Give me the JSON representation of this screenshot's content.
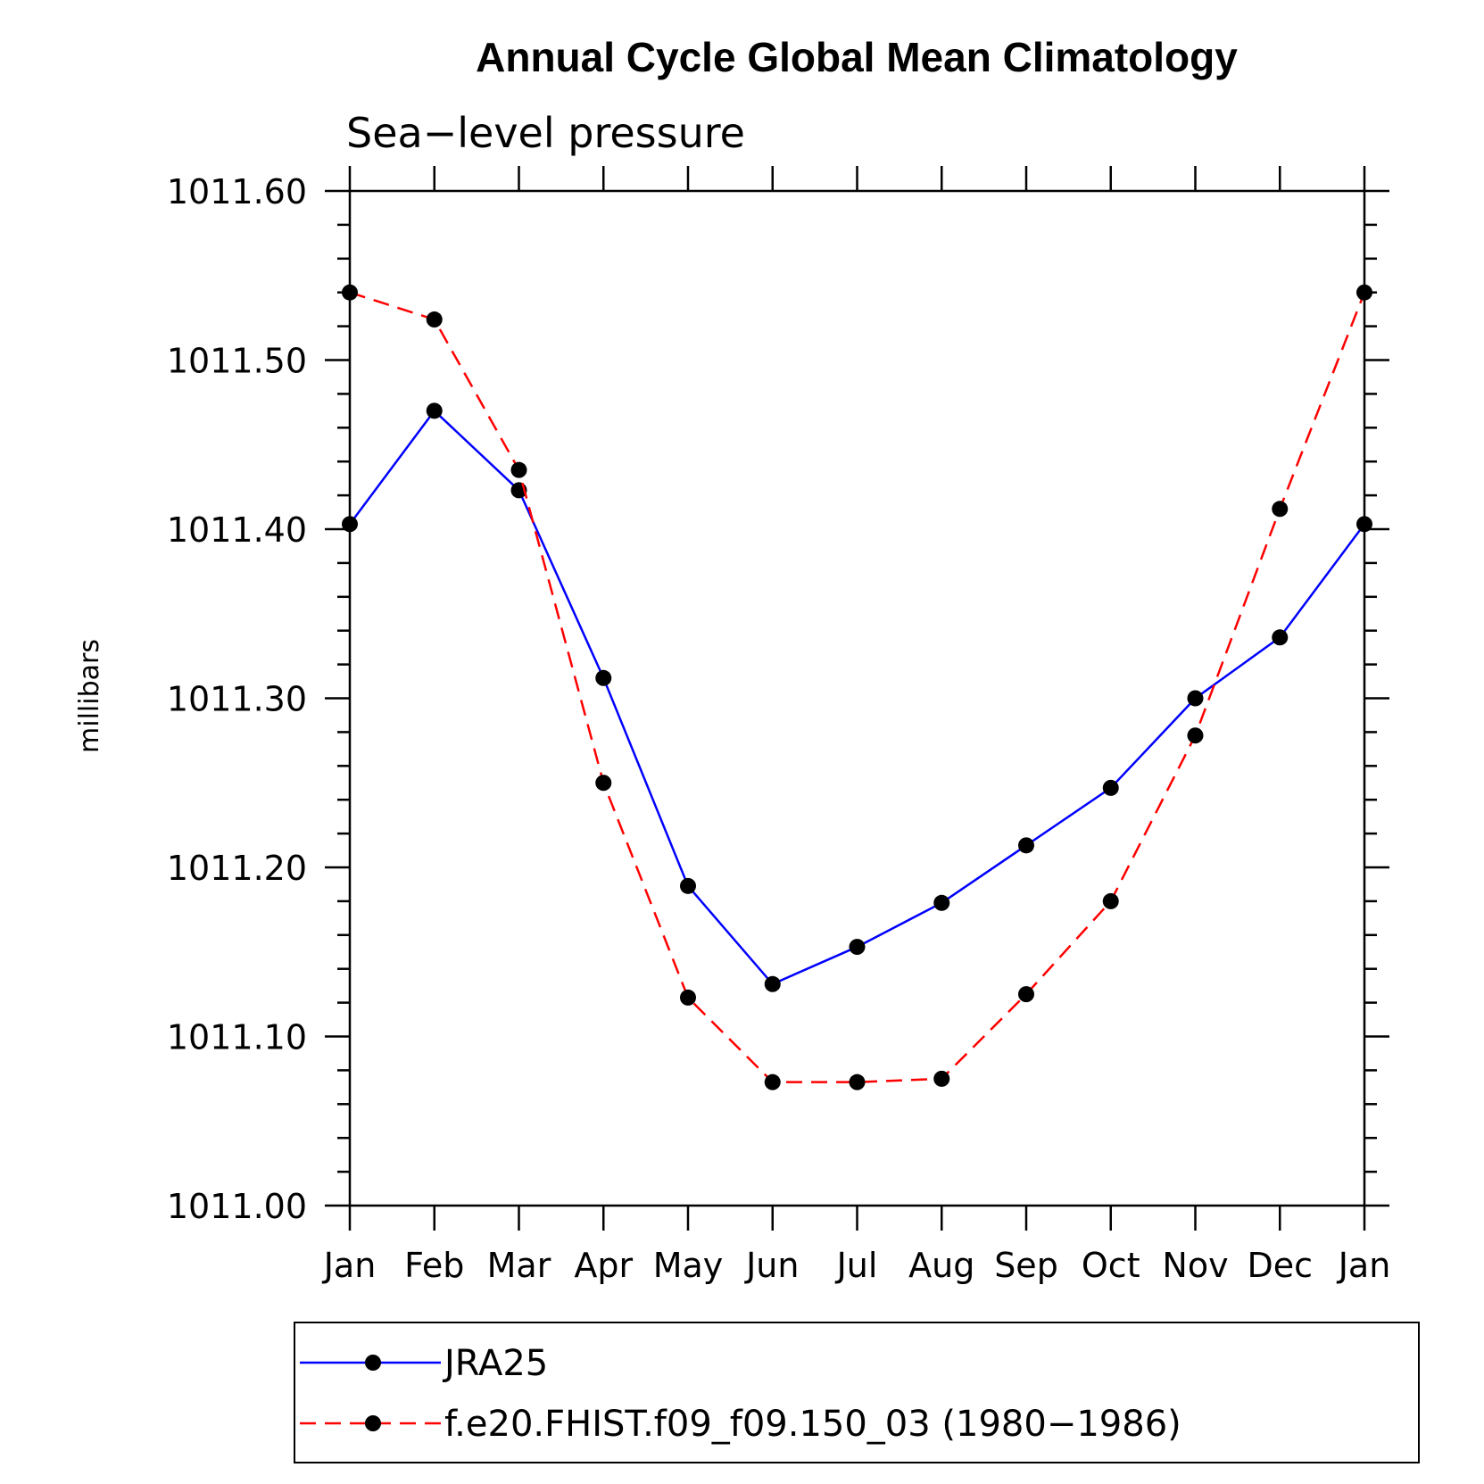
{
  "chart_data": {
    "type": "line",
    "title": "Annual Cycle Global Mean Climatology",
    "subtitle": "Sea−level pressure",
    "ylabel": "millibars",
    "xlabel": "",
    "categories": [
      "Jan",
      "Feb",
      "Mar",
      "Apr",
      "May",
      "Jun",
      "Jul",
      "Aug",
      "Sep",
      "Oct",
      "Nov",
      "Dec",
      "Jan"
    ],
    "ylim": [
      1011.0,
      1011.6
    ],
    "yticks": [
      "1011.00",
      "1011.10",
      "1011.20",
      "1011.30",
      "1011.40",
      "1011.50",
      "1011.60"
    ],
    "grid": false,
    "legend_position": "bottom",
    "series": [
      {
        "name": "JRA25",
        "color": "#0000ff",
        "dashed": false,
        "marker": "filled-circle",
        "values": [
          1011.403,
          1011.47,
          1011.423,
          1011.312,
          1011.189,
          1011.131,
          1011.153,
          1011.179,
          1011.213,
          1011.247,
          1011.3,
          1011.336,
          1011.403
        ]
      },
      {
        "name": "f.e20.FHIST.f09_f09.150_03 (1980−1986)",
        "color": "#ff0000",
        "dashed": true,
        "marker": "filled-circle",
        "values": [
          1011.54,
          1011.524,
          1011.435,
          1011.25,
          1011.123,
          1011.073,
          1011.073,
          1011.075,
          1011.125,
          1011.18,
          1011.278,
          1011.412,
          1011.54
        ]
      }
    ]
  }
}
